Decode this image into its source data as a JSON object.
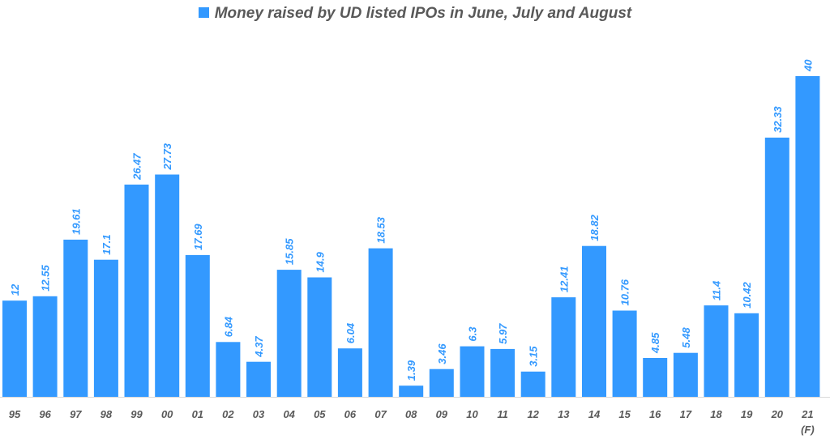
{
  "chart_data": {
    "type": "bar",
    "title": "",
    "legend": {
      "label": "Money raised by UD listed IPOs in June, July and August",
      "color": "#3399ff",
      "position": "top-center"
    },
    "categories": [
      "95",
      "96",
      "97",
      "98",
      "99",
      "00",
      "01",
      "02",
      "03",
      "04",
      "05",
      "06",
      "07",
      "08",
      "09",
      "10",
      "11",
      "12",
      "13",
      "14",
      "15",
      "16",
      "17",
      "18",
      "19",
      "20",
      "21"
    ],
    "category_sublabels": {
      "21": "(F)"
    },
    "values": [
      12,
      12.55,
      19.61,
      17.1,
      26.47,
      27.73,
      17.69,
      6.84,
      4.37,
      15.85,
      14.9,
      6.04,
      18.53,
      1.39,
      3.46,
      6.3,
      5.97,
      3.15,
      12.41,
      18.82,
      10.76,
      4.85,
      5.48,
      11.4,
      10.42,
      32.33,
      40
    ],
    "value_labels": [
      "12",
      "12.55",
      "19.61",
      "17.1",
      "26.47",
      "27.73",
      "17.69",
      "6.84",
      "4.37",
      "15.85",
      "14.9",
      "6.04",
      "18.53",
      "1.39",
      "3.46",
      "6.3",
      "5.97",
      "3.15",
      "12.41",
      "18.82",
      "10.76",
      "4.85",
      "5.48",
      "11.4",
      "10.42",
      "32.33",
      "40"
    ],
    "xlabel": "",
    "ylabel": "",
    "ylim": [
      0,
      40
    ],
    "grid": false,
    "bar_color": "#3399ff"
  }
}
